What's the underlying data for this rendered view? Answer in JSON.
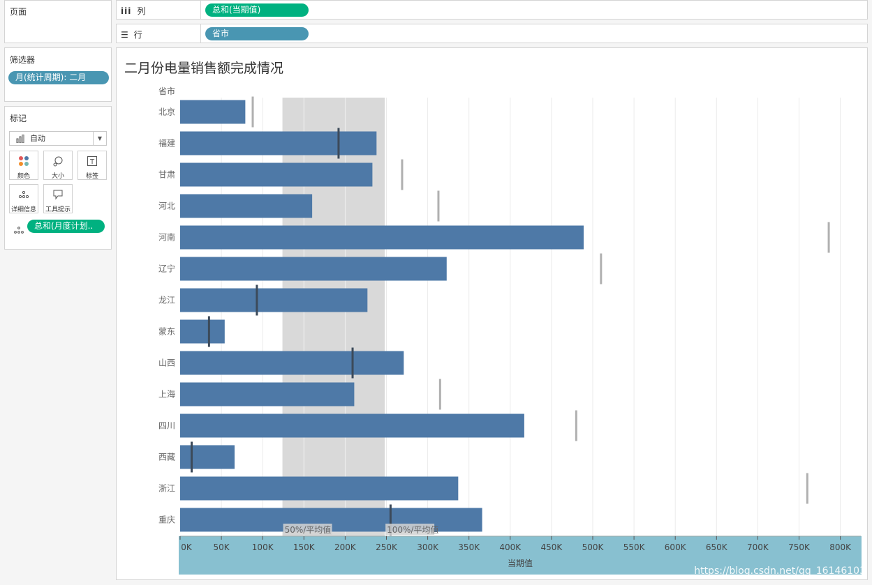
{
  "pages_panel": {
    "title": "页面"
  },
  "columns_shelf": {
    "label": "列",
    "pill": "总和(当期值)"
  },
  "rows_shelf": {
    "label": "行",
    "pill": "省市"
  },
  "filters_panel": {
    "title": "筛选器",
    "pill": "月(统计周期): 二月"
  },
  "marks_panel": {
    "title": "标记",
    "mark_type": "自动",
    "buttons": [
      {
        "label": "颜色",
        "icon": "color-icon"
      },
      {
        "label": "大小",
        "icon": "size-icon"
      },
      {
        "label": "标签",
        "icon": "label-icon"
      },
      {
        "label": "详细信息",
        "icon": "detail-icon"
      },
      {
        "label": "工具提示",
        "icon": "tooltip-icon"
      }
    ],
    "detail_pill": "总和(月度计划.."
  },
  "colors": {
    "bar": "#4e79a7",
    "green_pill": "#00b180",
    "blue_pill": "#4996b2",
    "band": "#d9d9d9",
    "axis_bg": "#88c0d0",
    "ref_line_dark": "#3c4a5a",
    "ref_line_light": "#b0b0b0"
  },
  "watermark": "https://blog.csdn.net/qq_16146103",
  "chart_data": {
    "type": "bar",
    "orientation": "horizontal",
    "title": "二月份电量销售额完成情况",
    "row_header": "省市",
    "xlabel": "当期值",
    "xlim": [
      0,
      825000
    ],
    "ticks": [
      0,
      50000,
      100000,
      150000,
      200000,
      250000,
      300000,
      350000,
      400000,
      450000,
      500000,
      550000,
      600000,
      650000,
      700000,
      750000,
      800000
    ],
    "tick_labels": [
      "0K",
      "50K",
      "100K",
      "150K",
      "200K",
      "250K",
      "300K",
      "350K",
      "400K",
      "450K",
      "500K",
      "550K",
      "600K",
      "650K",
      "700K",
      "750K",
      "800K"
    ],
    "categories": [
      "北京",
      "福建",
      "甘肃",
      "河北",
      "河南",
      "辽宁",
      "龙江",
      "蒙东",
      "山西",
      "上海",
      "四川",
      "西藏",
      "浙江",
      "重庆"
    ],
    "values": [
      79000,
      238000,
      233000,
      160000,
      489000,
      323000,
      227000,
      54000,
      271000,
      211000,
      417000,
      66000,
      337000,
      366000
    ],
    "plan_values": [
      88000,
      192000,
      269000,
      313000,
      786000,
      510000,
      93000,
      35000,
      209000,
      315000,
      480000,
      14000,
      760000,
      255000
    ],
    "reference_band": {
      "from": 124000,
      "to": 248000,
      "labels": [
        "50%/平均值",
        "100%/平均值"
      ]
    },
    "grid": true
  }
}
